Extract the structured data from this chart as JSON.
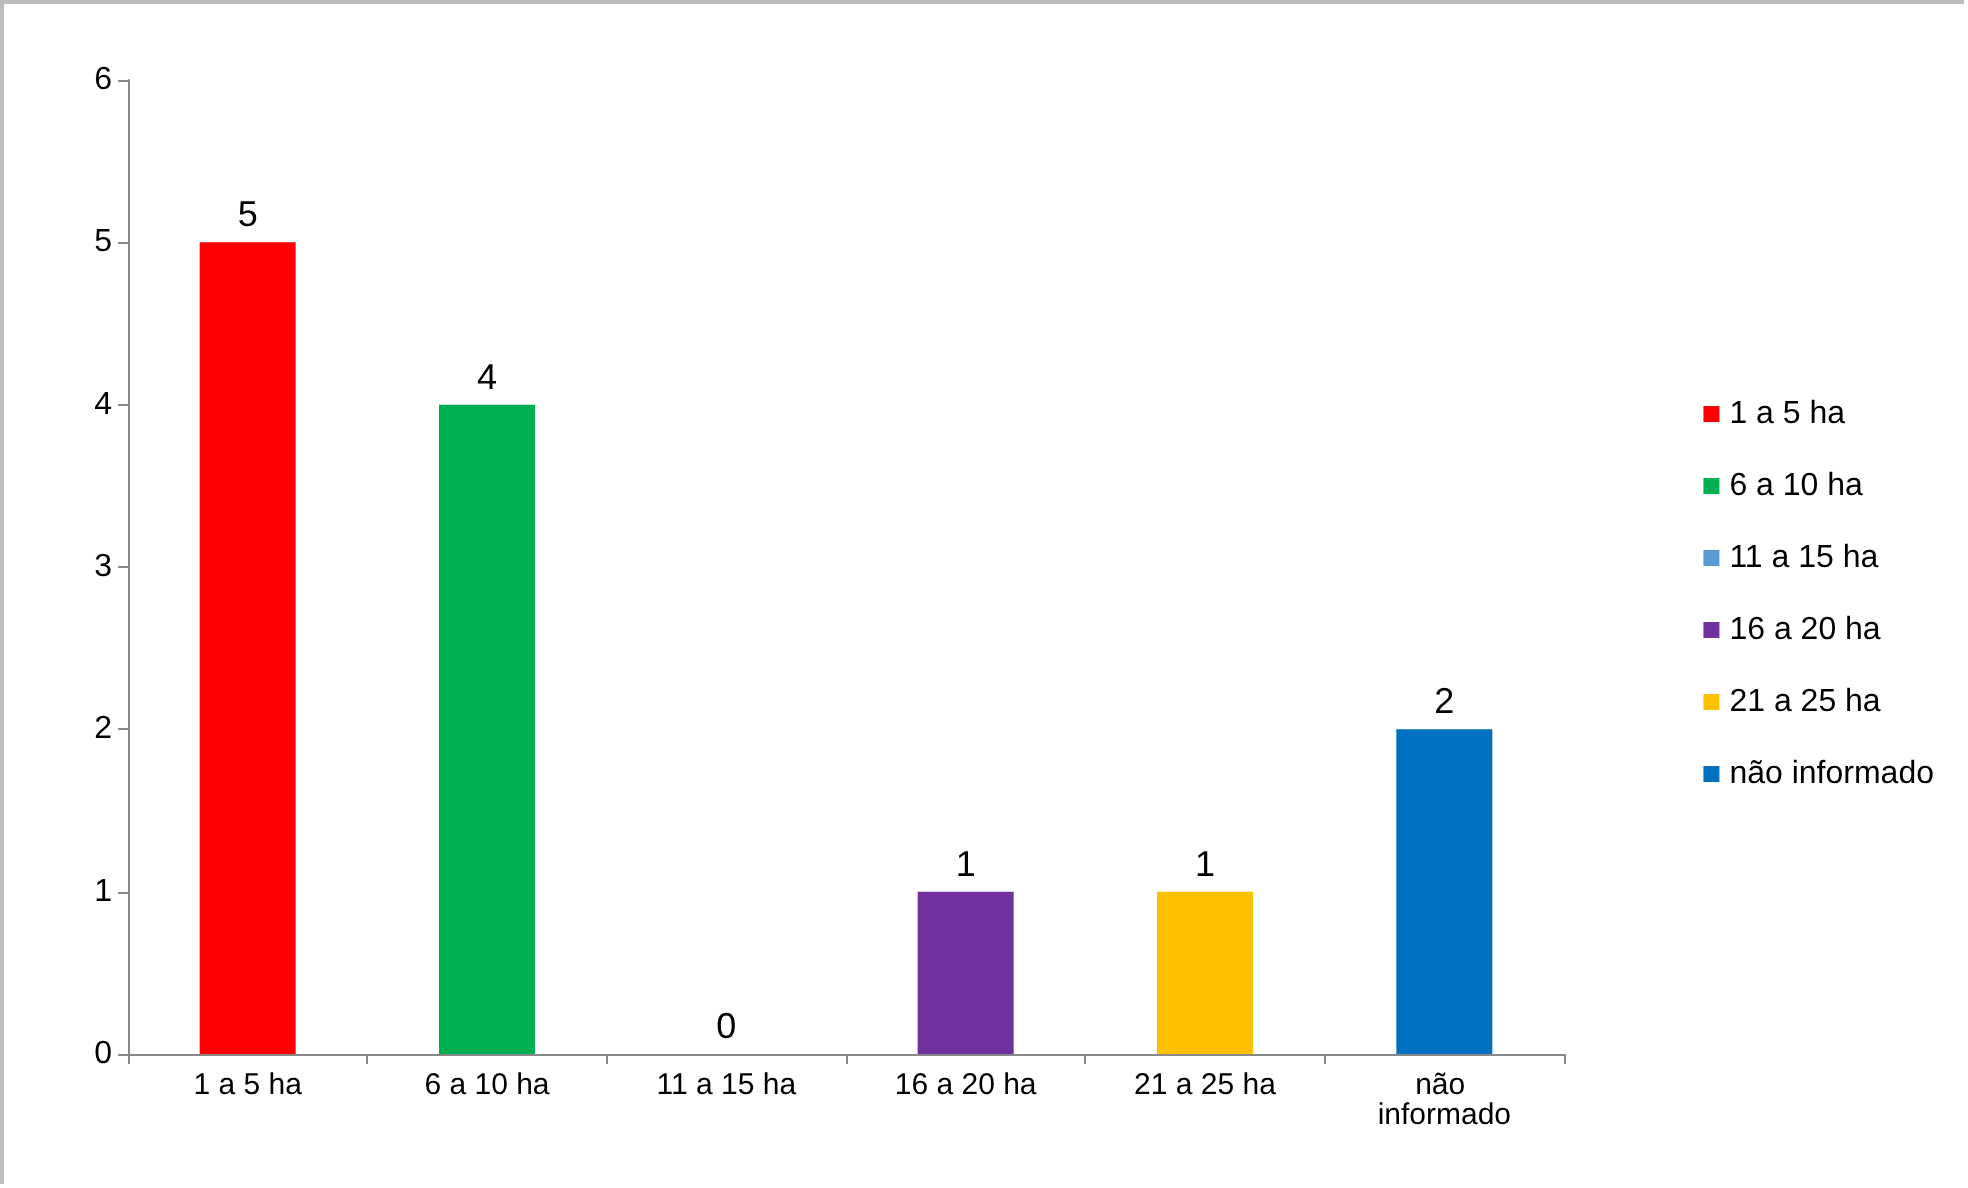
{
  "chart_data": {
    "type": "bar",
    "categories": [
      "1 a 5 ha",
      "6 a 10 ha",
      "11 a 15 ha",
      "16 a 20 ha",
      "21 a 25 ha",
      "não informado"
    ],
    "series": [
      {
        "name": "1 a 5 ha",
        "color": "#ff0000",
        "values": [
          5,
          null,
          null,
          null,
          null,
          null
        ]
      },
      {
        "name": "6 a 10 ha",
        "color": "#00b050",
        "values": [
          null,
          4,
          null,
          null,
          null,
          null
        ]
      },
      {
        "name": "11 a 15 ha",
        "color": "#5b9bd5",
        "values": [
          null,
          null,
          0,
          null,
          null,
          null
        ]
      },
      {
        "name": "16 a 20 ha",
        "color": "#7030a0",
        "values": [
          null,
          null,
          null,
          1,
          null,
          null
        ]
      },
      {
        "name": "21 a 25 ha",
        "color": "#ffc000",
        "values": [
          null,
          null,
          null,
          null,
          1,
          null
        ]
      },
      {
        "name": "não informado",
        "color": "#0070c0",
        "values": [
          null,
          null,
          null,
          null,
          null,
          2
        ]
      }
    ],
    "ylim": [
      0,
      6
    ],
    "yticks": [
      0,
      1,
      2,
      3,
      4,
      5,
      6
    ],
    "grid": false,
    "legend": "right",
    "data_labels": true
  }
}
